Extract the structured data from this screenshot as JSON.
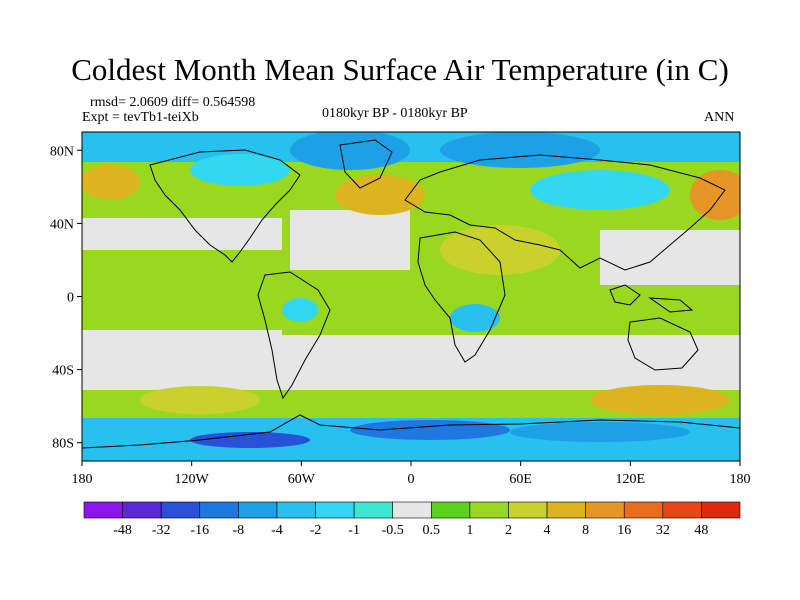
{
  "title": "Coldest Month Mean Surface Air Temperature (in C)",
  "stats": {
    "line1": "rmsd= 2.0609  diff= 0.564598",
    "line2": "Expt = tevTb1-teiXb"
  },
  "period": "0180kyr BP - 0180kyr BP",
  "season": "ANN",
  "lat_labels": [
    "80N",
    "40N",
    "0",
    "40S",
    "80S"
  ],
  "lat_values": [
    80,
    40,
    0,
    -40,
    -80
  ],
  "lon_labels": [
    "180",
    "120W",
    "60W",
    "0",
    "60E",
    "120E",
    "180"
  ],
  "lon_values": [
    -180,
    -120,
    -60,
    0,
    60,
    120,
    180
  ],
  "colorbar": {
    "labels": [
      "-48",
      "-32",
      "-16",
      "-8",
      "-4",
      "-2",
      "-1",
      "-0.5",
      "0.5",
      "1",
      "2",
      "4",
      "8",
      "16",
      "32",
      "48"
    ],
    "colors": [
      "#8b14f0",
      "#5a28d8",
      "#2850d8",
      "#1e78e0",
      "#1ea0e6",
      "#28c0ec",
      "#32d8f0",
      "#3ce8d2",
      "#e6e6e6",
      "#5ad21e",
      "#9ad820",
      "#c8d22a",
      "#dcb41e",
      "#e69626",
      "#e86e1e",
      "#e84614",
      "#dc2a0a"
    ]
  }
}
